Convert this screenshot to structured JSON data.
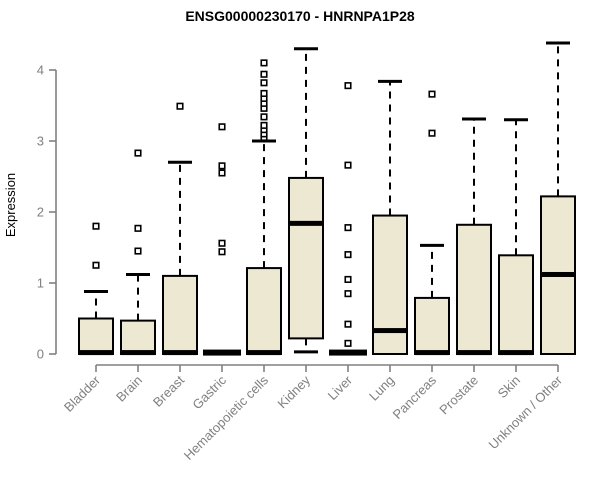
{
  "chart_data": {
    "type": "boxplot",
    "title": "ENSG00000230170 - HNRNPA1P28",
    "xlabel": "",
    "ylabel": "Expression",
    "ylim": [
      0,
      4
    ],
    "yticks": [
      0,
      1,
      2,
      3,
      4
    ],
    "grid": false,
    "legend": false,
    "categories": [
      "Bladder",
      "Brain",
      "Breast",
      "Gastric",
      "Hematopoietic cells",
      "Kidney",
      "Liver",
      "Lung",
      "Pancreas",
      "Prostate",
      "Skin",
      "Unknown / Other"
    ],
    "series": [
      {
        "name": "Bladder",
        "q1": 0,
        "median": 0.02,
        "q3": 0.5,
        "whisker_low": 0,
        "whisker_high": 0.88,
        "outliers": [
          1.25,
          1.8
        ]
      },
      {
        "name": "Brain",
        "q1": 0,
        "median": 0.02,
        "q3": 0.47,
        "whisker_low": 0,
        "whisker_high": 1.12,
        "outliers": [
          1.45,
          1.77,
          2.83
        ]
      },
      {
        "name": "Breast",
        "q1": 0,
        "median": 0.02,
        "q3": 1.1,
        "whisker_low": 0,
        "whisker_high": 2.7,
        "outliers": [
          3.49
        ]
      },
      {
        "name": "Gastric",
        "q1": 0,
        "median": 0.02,
        "q3": 0.02,
        "whisker_low": 0,
        "whisker_high": 0.02,
        "outliers": [
          1.44,
          1.56,
          2.55,
          2.65,
          3.2
        ]
      },
      {
        "name": "Hematopoietic cells",
        "q1": 0,
        "median": 0.02,
        "q3": 1.21,
        "whisker_low": 0,
        "whisker_high": 3.0,
        "outliers": [
          3.05,
          3.1,
          3.16,
          3.22,
          3.34,
          3.46,
          3.53,
          3.6,
          3.67,
          3.82,
          3.94,
          4.1
        ]
      },
      {
        "name": "Kidney",
        "q1": 0.22,
        "median": 1.84,
        "q3": 2.48,
        "whisker_low": 0.03,
        "whisker_high": 4.3,
        "outliers": []
      },
      {
        "name": "Liver",
        "q1": 0,
        "median": 0.02,
        "q3": 0.02,
        "whisker_low": 0,
        "whisker_high": 0.02,
        "outliers": [
          0.15,
          0.42,
          0.85,
          1.05,
          1.4,
          1.78,
          2.66,
          3.78
        ]
      },
      {
        "name": "Lung",
        "q1": 0,
        "median": 0.33,
        "q3": 1.95,
        "whisker_low": 0,
        "whisker_high": 3.84,
        "outliers": []
      },
      {
        "name": "Pancreas",
        "q1": 0,
        "median": 0.02,
        "q3": 0.79,
        "whisker_low": 0,
        "whisker_high": 1.53,
        "outliers": [
          3.11,
          3.66
        ]
      },
      {
        "name": "Prostate",
        "q1": 0,
        "median": 0.02,
        "q3": 1.82,
        "whisker_low": 0,
        "whisker_high": 3.31,
        "outliers": []
      },
      {
        "name": "Skin",
        "q1": 0,
        "median": 0.02,
        "q3": 1.39,
        "whisker_low": 0,
        "whisker_high": 3.3,
        "outliers": []
      },
      {
        "name": "Unknown / Other",
        "q1": 0,
        "median": 1.12,
        "q3": 2.22,
        "whisker_low": 0,
        "whisker_high": 4.38,
        "outliers": []
      }
    ],
    "colors": {
      "background": "#ffffff",
      "box_fill": "#EDE8D1",
      "box_stroke": "#000000",
      "median": "#000000",
      "whisker": "#000000",
      "outlier_stroke": "#000000",
      "outlier_fill": "#ffffff",
      "axis": "#808080",
      "tick_text": "#808080",
      "title_text": "#000000"
    }
  }
}
